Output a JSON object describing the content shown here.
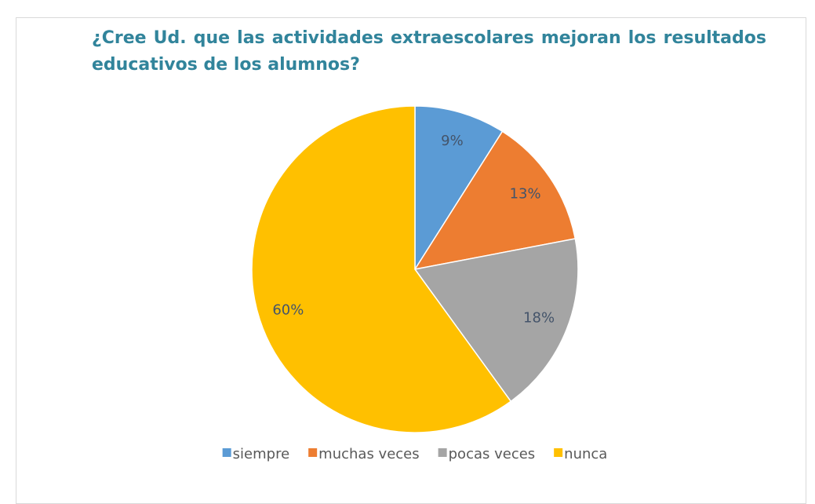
{
  "chart_data": {
    "type": "pie",
    "title": "¿Cree Ud. que las actividades extraescolares mejoran los resultados educativos de los alumnos?",
    "categories": [
      "siempre",
      "muchas veces",
      "pocas veces",
      "nunca"
    ],
    "values": [
      9,
      13,
      18,
      60
    ],
    "value_labels": [
      "9%",
      "13%",
      "18%",
      "60%"
    ],
    "colors": [
      "#5b9bd5",
      "#ed7d31",
      "#a5a5a5",
      "#ffc000"
    ],
    "legend": "bottom"
  }
}
